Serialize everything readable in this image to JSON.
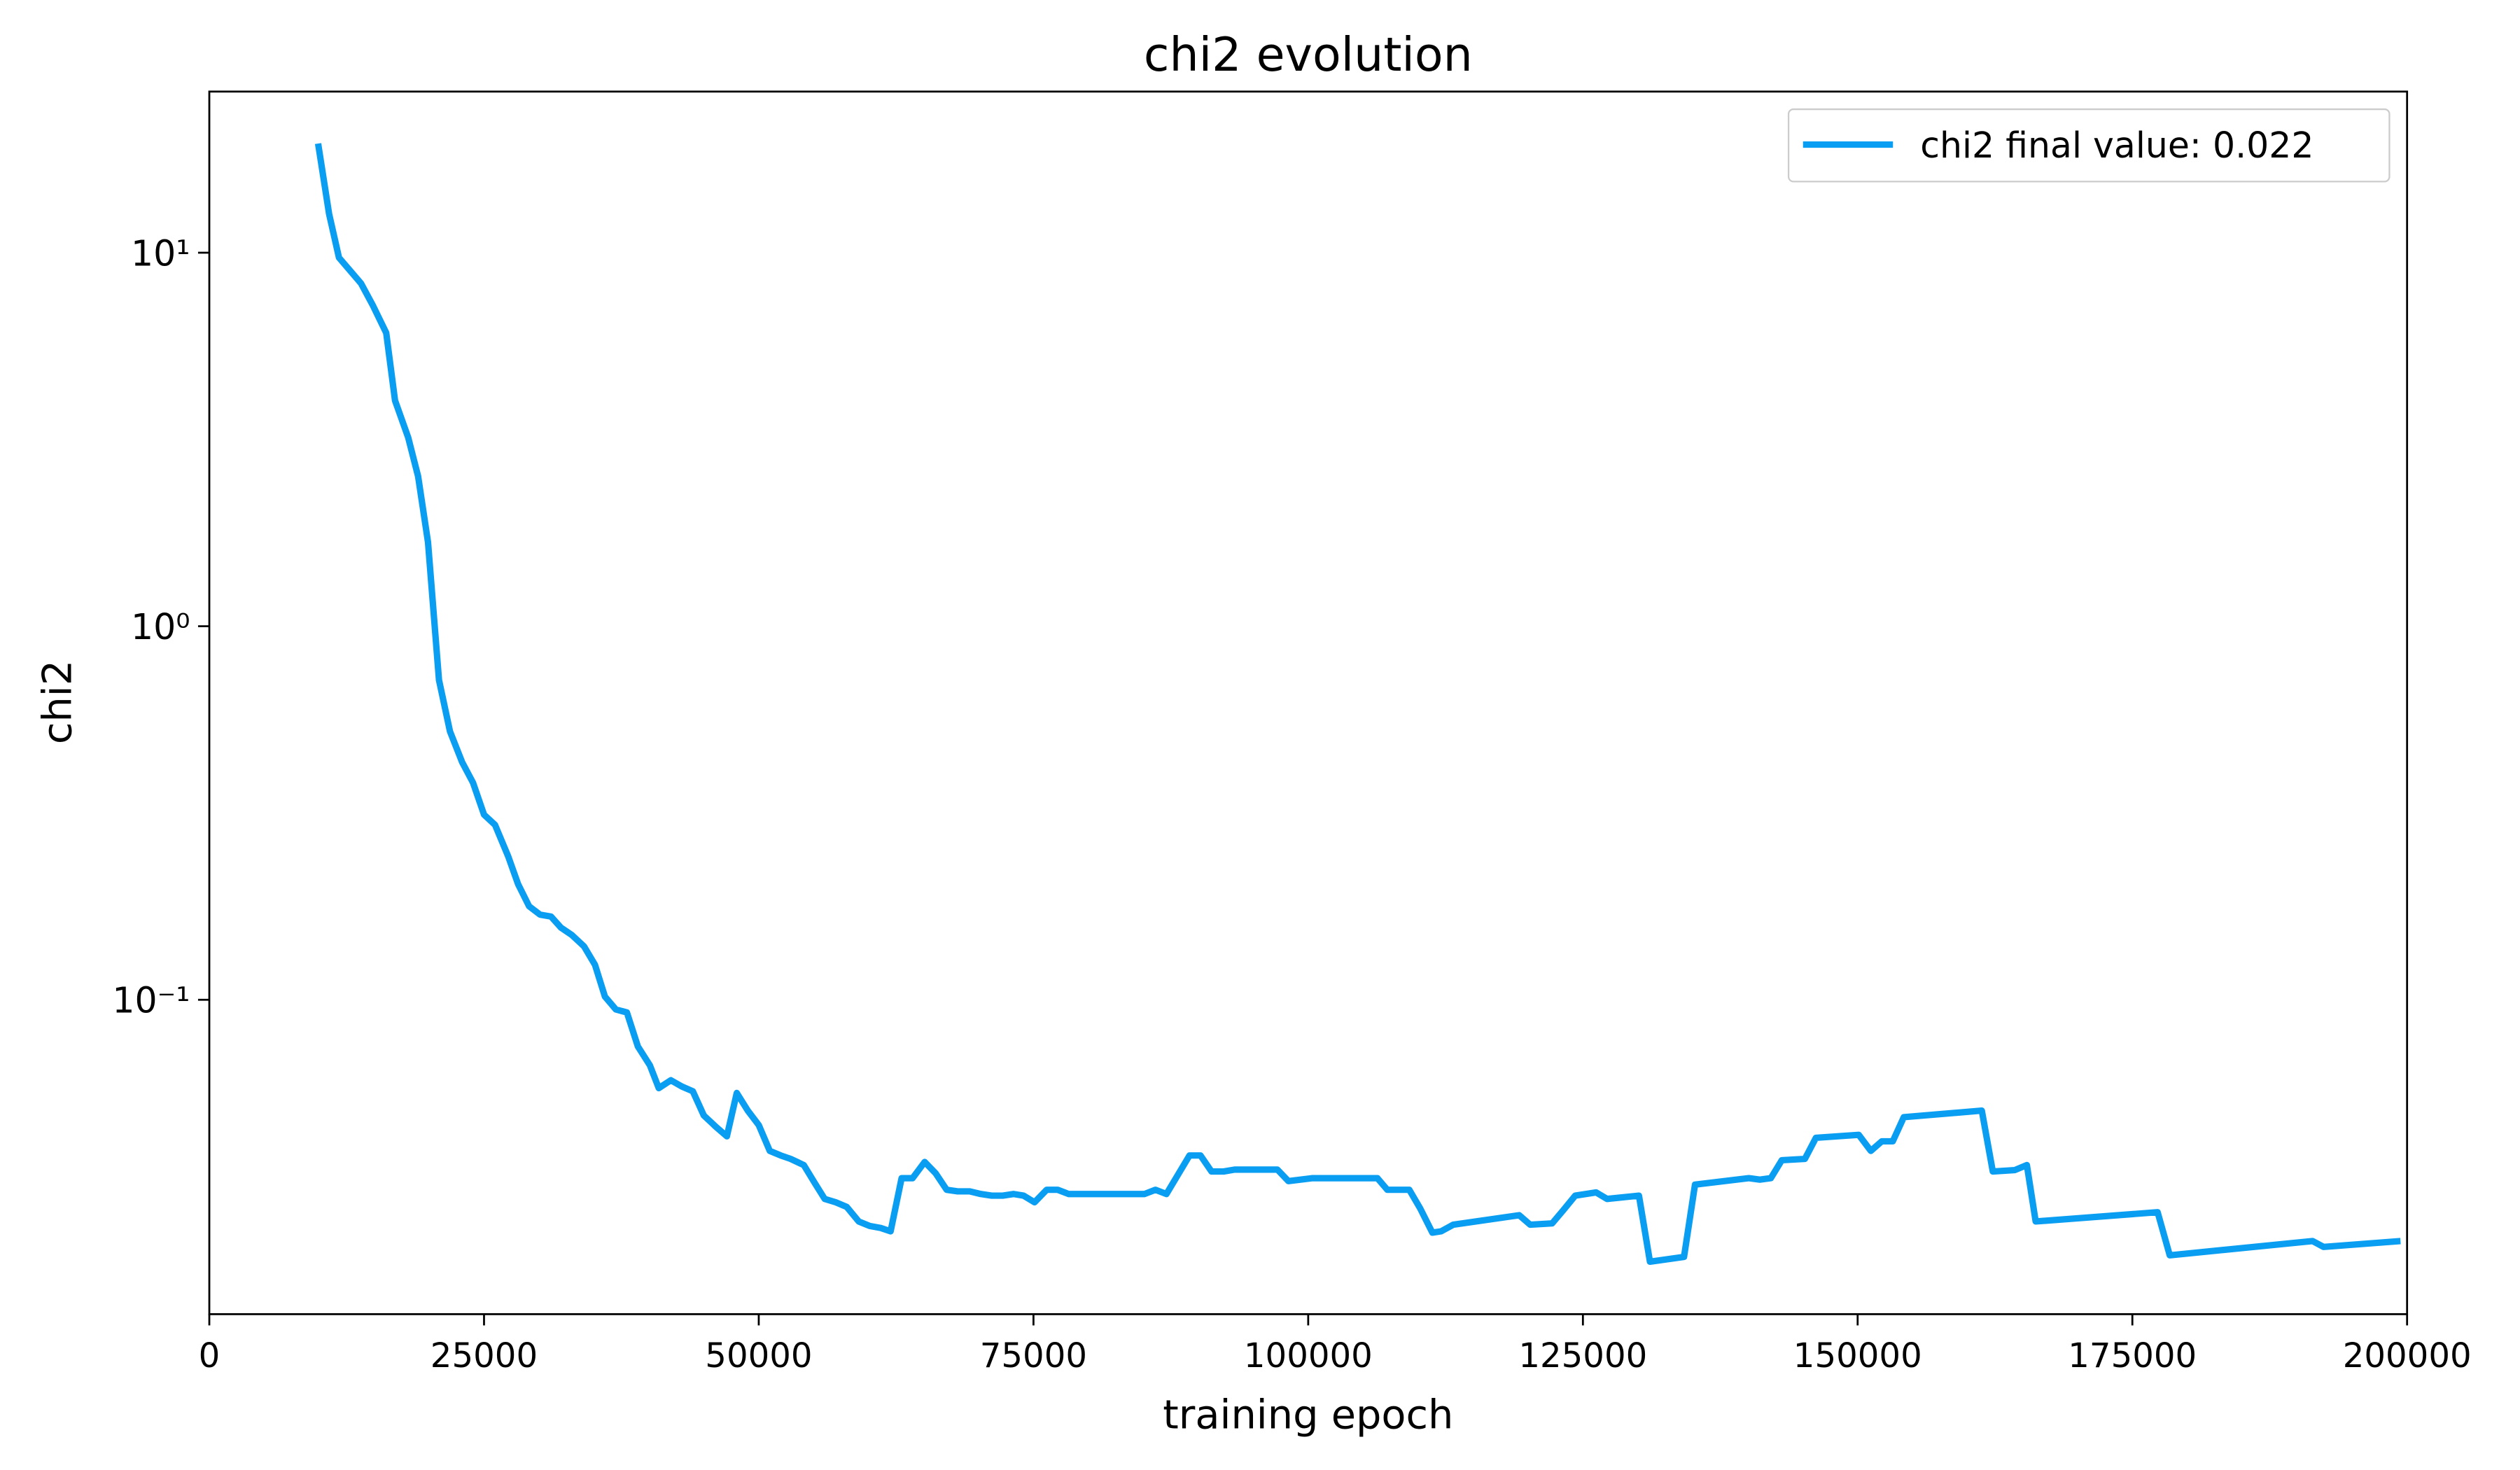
{
  "chart_data": {
    "type": "line",
    "title": "chi2 evolution",
    "x_label": "training epoch",
    "y_label": "chi2",
    "xlim": [
      0,
      200000
    ],
    "xticks": [
      0,
      25000,
      50000,
      75000,
      100000,
      125000,
      150000,
      175000,
      200000
    ],
    "ylim": [
      0.0144,
      27
    ],
    "y_scale": "log",
    "yticks": [
      {
        "value": 0.1,
        "label": "10⁻¹"
      },
      {
        "value": 1,
        "label": "10⁰"
      },
      {
        "value": 10,
        "label": "10¹"
      }
    ],
    "grid": false,
    "legend_position": "upper right",
    "series": [
      {
        "name": "chi2 final value: 0.022",
        "color": "#0a9ef2",
        "x": [
          9900,
          10900,
          11800,
          13800,
          14900,
          16100,
          16900,
          18100,
          19000,
          19900,
          20900,
          21900,
          23000,
          24000,
          25000,
          26000,
          27200,
          28100,
          29100,
          30100,
          31100,
          32000,
          33000,
          34100,
          35100,
          36000,
          37000,
          38000,
          39000,
          40100,
          40900,
          42000,
          43000,
          44000,
          45000,
          46100,
          47100,
          48000,
          49000,
          50000,
          51000,
          52000,
          52900,
          54100,
          55100,
          56000,
          57000,
          58000,
          59100,
          60100,
          61100,
          62000,
          63000,
          64000,
          65100,
          66100,
          67100,
          68100,
          69200,
          70200,
          71200,
          72200,
          73200,
          74100,
          75100,
          76200,
          77200,
          78200,
          79200,
          80300,
          85100,
          86100,
          87100,
          89200,
          90200,
          91200,
          92300,
          93300,
          97200,
          98200,
          99300,
          100400,
          106300,
          107200,
          109200,
          110200,
          111300,
          112100,
          113200,
          119200,
          120200,
          122200,
          123200,
          124300,
          126200,
          127200,
          130100,
          131100,
          134200,
          135200,
          140100,
          141100,
          142100,
          143100,
          145200,
          146200,
          150100,
          151200,
          152200,
          153200,
          154200,
          161300,
          162300,
          164300,
          165400,
          166200,
          177300,
          178400,
          191400,
          192400,
          199400
        ],
        "values": [
          19.6,
          12.7,
          9.7,
          8.28,
          7.21,
          6.1,
          4.02,
          3.2,
          2.52,
          1.68,
          0.718,
          0.523,
          0.433,
          0.381,
          0.313,
          0.294,
          0.242,
          0.204,
          0.178,
          0.169,
          0.167,
          0.156,
          0.149,
          0.139,
          0.124,
          0.102,
          0.0942,
          0.0925,
          0.075,
          0.0667,
          0.058,
          0.0609,
          0.0586,
          0.0569,
          0.049,
          0.0457,
          0.0431,
          0.0563,
          0.0505,
          0.0462,
          0.0394,
          0.0383,
          0.0375,
          0.0361,
          0.0323,
          0.0293,
          0.0287,
          0.0279,
          0.0255,
          0.0248,
          0.0245,
          0.024,
          0.0333,
          0.0333,
          0.0368,
          0.0343,
          0.031,
          0.0307,
          0.0307,
          0.0302,
          0.0299,
          0.0299,
          0.0302,
          0.0299,
          0.0287,
          0.031,
          0.031,
          0.0302,
          0.0302,
          0.0302,
          0.0302,
          0.031,
          0.0302,
          0.0383,
          0.0383,
          0.0347,
          0.0347,
          0.0351,
          0.0351,
          0.0327,
          0.033,
          0.0333,
          0.0333,
          0.031,
          0.031,
          0.0276,
          0.0238,
          0.024,
          0.025,
          0.0265,
          0.025,
          0.0252,
          0.0273,
          0.0299,
          0.0305,
          0.0293,
          0.0299,
          0.0199,
          0.0205,
          0.032,
          0.0333,
          0.033,
          0.0333,
          0.0372,
          0.0375,
          0.0427,
          0.0435,
          0.0394,
          0.0418,
          0.0418,
          0.0485,
          0.0505,
          0.0347,
          0.035,
          0.0361,
          0.0255,
          0.027,
          0.0207,
          0.0226,
          0.0218,
          0.0226
        ]
      }
    ]
  }
}
